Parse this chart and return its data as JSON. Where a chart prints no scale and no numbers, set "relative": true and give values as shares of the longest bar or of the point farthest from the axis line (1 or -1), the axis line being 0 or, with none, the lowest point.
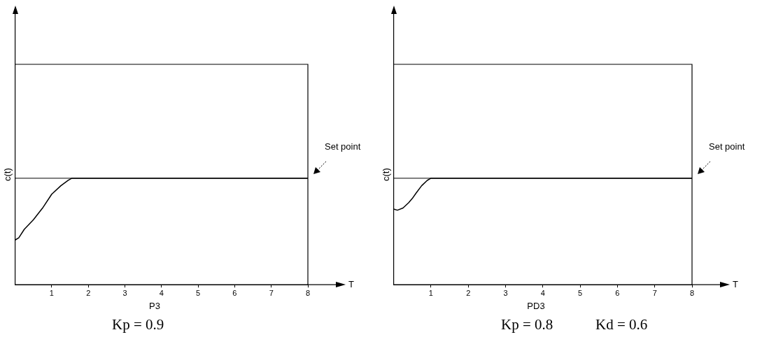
{
  "chart_data": [
    {
      "type": "line",
      "title": "P3",
      "xlabel": "T",
      "ylabel": "c(t)",
      "relative": true,
      "xlim": [
        0,
        8
      ],
      "xticks": [
        1,
        2,
        3,
        4,
        5,
        6,
        7,
        8
      ],
      "grid": false,
      "legend": false,
      "marker": "none",
      "line_style": "solid",
      "series": [
        {
          "color": "#000000",
          "x": [
            0,
            0.1,
            0.25,
            0.5,
            0.75,
            1,
            1.25,
            1.45,
            1.55,
            1.6,
            2,
            3,
            4,
            5,
            6,
            7,
            8
          ],
          "values": [
            0.42,
            0.44,
            0.52,
            0.61,
            0.72,
            0.85,
            0.93,
            0.98,
            1,
            1,
            1,
            1,
            1,
            1,
            1,
            1,
            1
          ]
        }
      ],
      "ref_lines": [
        {
          "axis": "y",
          "value": 1,
          "label": "Set point",
          "color": "#000000"
        }
      ],
      "annotations": [
        "Kp = 0.9"
      ]
    },
    {
      "type": "line",
      "title": "PD3",
      "xlabel": "T",
      "ylabel": "c(t)",
      "relative": true,
      "xlim": [
        0,
        8
      ],
      "xticks": [
        1,
        2,
        3,
        4,
        5,
        6,
        7,
        8
      ],
      "grid": false,
      "legend": false,
      "marker": "none",
      "line_style": "solid",
      "series": [
        {
          "color": "#000000",
          "x": [
            0,
            0.1,
            0.25,
            0.4,
            0.5,
            0.6,
            0.75,
            0.9,
            1,
            1.1,
            1.3,
            1.6,
            2,
            3,
            4,
            5,
            6,
            7,
            8
          ],
          "values": [
            0.71,
            0.7,
            0.72,
            0.77,
            0.81,
            0.86,
            0.93,
            0.98,
            1,
            1,
            1,
            1,
            1,
            1,
            1,
            1,
            1,
            1,
            1
          ]
        }
      ],
      "ref_lines": [
        {
          "axis": "y",
          "value": 1,
          "label": "Set point",
          "color": "#000000"
        }
      ],
      "annotations": [
        "Kp = 0.8",
        "Kd = 0.6"
      ]
    }
  ]
}
